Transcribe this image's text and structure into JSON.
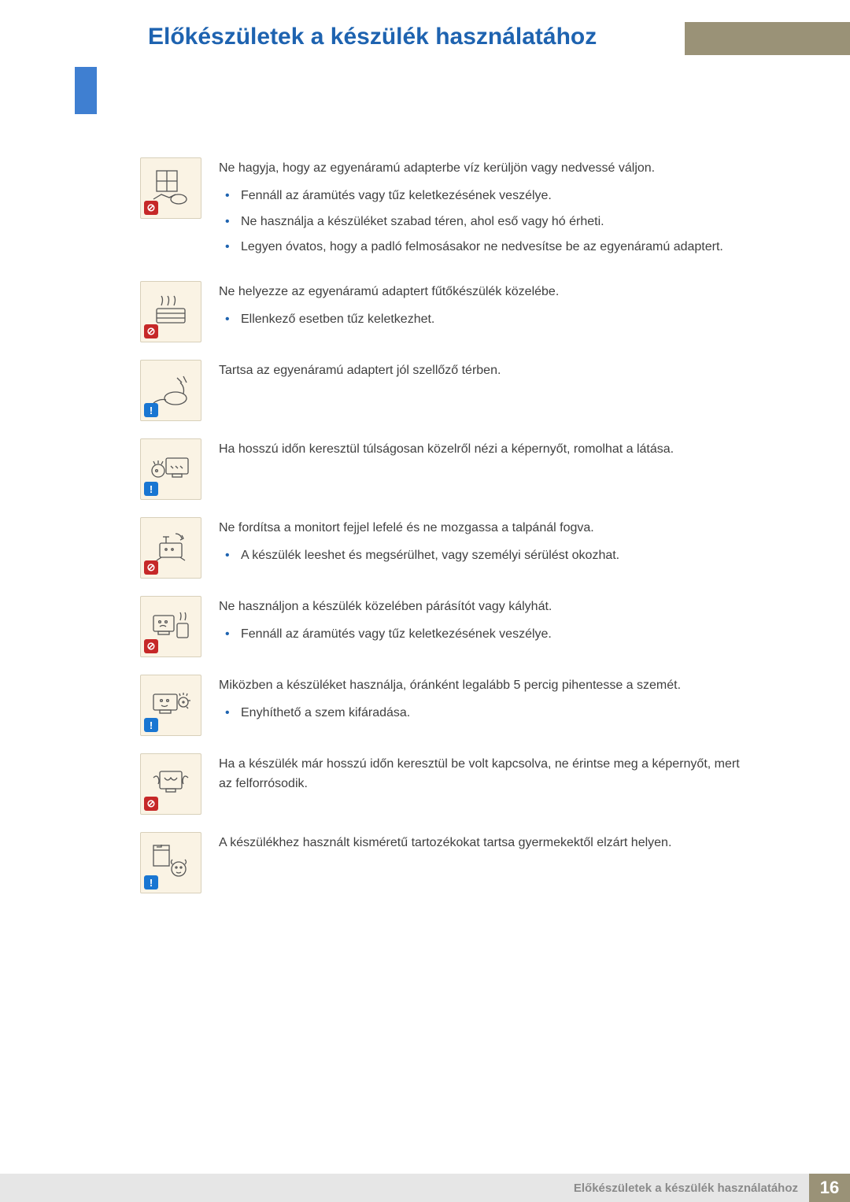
{
  "page": {
    "title": "Előkészületek a készülék használatához",
    "footer_text": "Előkészületek a készülék használatához",
    "page_number": "16"
  },
  "badges": {
    "prohibit_glyph": "⊘",
    "info_glyph": "!"
  },
  "colors": {
    "title": "#1e63b0",
    "khaki": "#9a9277",
    "stripe": "#3f7fd1",
    "icon_bg": "#faf3e4",
    "prohibit": "#c62828",
    "info": "#1976d2",
    "bullet": "#1e63b0",
    "footer_bg": "#e6e6e6",
    "footer_text": "#8a8a8a"
  },
  "items": [
    {
      "type": "prohibit",
      "icon": "water",
      "heading": "Ne hagyja, hogy az egyenáramú adapterbe víz kerüljön vagy nedvessé váljon.",
      "bullets": [
        "Fennáll az áramütés vagy tűz keletkezésének veszélye.",
        "Ne használja a készüléket szabad téren, ahol eső vagy hó érheti.",
        "Legyen óvatos, hogy a padló felmosásakor ne nedvesítse be az egyenáramú adaptert."
      ]
    },
    {
      "type": "prohibit",
      "icon": "heater",
      "heading": "Ne helyezze az egyenáramú adaptert fűtőkészülék közelébe.",
      "bullets": [
        "Ellenkező esetben tűz keletkezhet."
      ]
    },
    {
      "type": "info",
      "icon": "vent",
      "heading": "Tartsa az egyenáramú adaptert jól szellőző térben.",
      "bullets": []
    },
    {
      "type": "info",
      "icon": "eyes-close",
      "heading": "Ha hosszú időn keresztül túlságosan közelről nézi a képernyőt, romolhat a látása.",
      "bullets": []
    },
    {
      "type": "prohibit",
      "icon": "upside-down",
      "heading": "Ne fordítsa a monitort fejjel lefelé és ne mozgassa a talpánál fogva.",
      "bullets": [
        "A készülék leeshet és megsérülhet, vagy személyi sérülést okozhat."
      ]
    },
    {
      "type": "prohibit",
      "icon": "humidifier",
      "heading": "Ne használjon a készülék közelében párásítót vagy kályhát.",
      "bullets": [
        "Fennáll az áramütés vagy tűz keletkezésének veszélye."
      ]
    },
    {
      "type": "info",
      "icon": "rest-eyes",
      "heading": "Miközben a készüléket használja, óránként legalább 5 percig pihentesse a szemét.",
      "bullets": [
        "Enyhíthető a szem kifáradása."
      ]
    },
    {
      "type": "prohibit",
      "icon": "hot-screen",
      "heading": "Ha a készülék már hosszú időn keresztül be volt kapcsolva, ne érintse meg a képernyőt, mert az felforrósodik.",
      "bullets": []
    },
    {
      "type": "info",
      "icon": "small-parts",
      "heading": "A készülékhez használt kisméretű tartozékokat tartsa gyermekektől elzárt helyen.",
      "bullets": []
    }
  ]
}
